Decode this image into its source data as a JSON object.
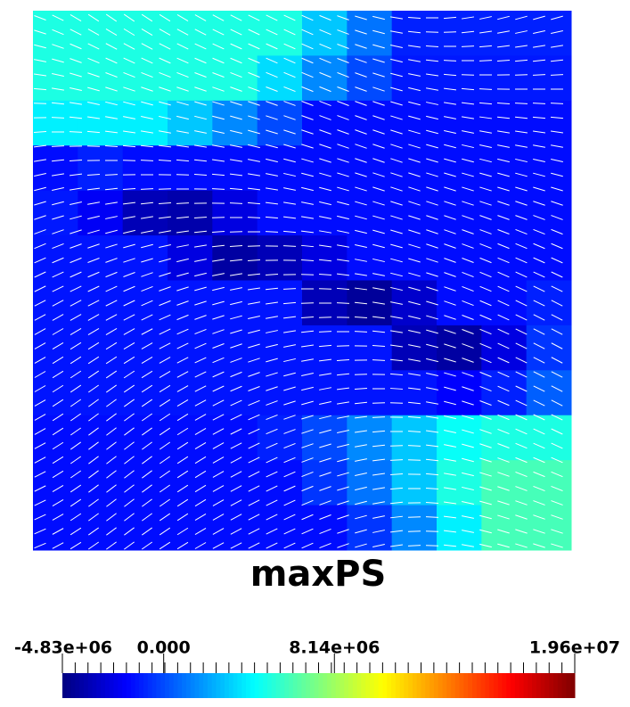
{
  "chart_data": {
    "type": "heatmap",
    "title": "maxPS",
    "colormap": "jet",
    "clim": [
      -4830000,
      19600000
    ],
    "cticks": [
      {
        "value": -4830000,
        "label": "-4.83e+06"
      },
      {
        "value": 0,
        "label": "0.000"
      },
      {
        "value": 8140000,
        "label": "8.14e+06"
      },
      {
        "value": 19600000,
        "label": "1.96e+07"
      }
    ],
    "z": [
      [
        5000000,
        5000000,
        5000000,
        5000000,
        5000000,
        5000000,
        3000000,
        1000000,
        -1000000,
        -1000000,
        -1000000,
        -1000000
      ],
      [
        5000000,
        5000000,
        5000000,
        5000000,
        5000000,
        3500000,
        1500000,
        0,
        -1200000,
        -1200000,
        -1200000,
        -1200000
      ],
      [
        4000000,
        4000000,
        4000000,
        3000000,
        1500000,
        0,
        -1500000,
        -1500000,
        -1500000,
        -1500000,
        -1500000,
        -1500000
      ],
      [
        -1500000,
        -1000000,
        -1500000,
        -1500000,
        -1500000,
        -1500000,
        -1500000,
        -1500000,
        -1500000,
        -1500000,
        -1500000,
        -1500000
      ],
      [
        -1200000,
        -2000000,
        -3500000,
        -3800000,
        -2500000,
        -1500000,
        -1500000,
        -1500000,
        -1500000,
        -1500000,
        -1500000,
        -1500000
      ],
      [
        -1300000,
        -1300000,
        -1300000,
        -2500000,
        -4000000,
        -3500000,
        -2500000,
        -1500000,
        -1500000,
        -1500000,
        -1500000,
        -1500000
      ],
      [
        -1300000,
        -1300000,
        -1300000,
        -1300000,
        -1300000,
        -1300000,
        -3500000,
        -4200000,
        -3000000,
        -1500000,
        -1500000,
        -1000000
      ],
      [
        -1300000,
        -1300000,
        -1300000,
        -1300000,
        -1300000,
        -1300000,
        -1300000,
        -1300000,
        -3500000,
        -4000000,
        -2500000,
        -500000
      ],
      [
        -1300000,
        -1300000,
        -1300000,
        -1300000,
        -1300000,
        -1300000,
        -1300000,
        -1300000,
        -1300000,
        -1800000,
        -1000000,
        500000
      ],
      [
        -1500000,
        -1500000,
        -1500000,
        -1500000,
        -1500000,
        -1000000,
        0,
        1500000,
        3000000,
        4500000,
        5000000,
        5000000
      ],
      [
        -1500000,
        -1500000,
        -1500000,
        -1500000,
        -1500000,
        -1500000,
        -500000,
        1000000,
        3000000,
        5000000,
        6000000,
        6000000
      ],
      [
        -1500000,
        -1500000,
        -1500000,
        -1500000,
        -1500000,
        -1500000,
        -1500000,
        -500000,
        1500000,
        4000000,
        6000000,
        6000000
      ]
    ]
  }
}
